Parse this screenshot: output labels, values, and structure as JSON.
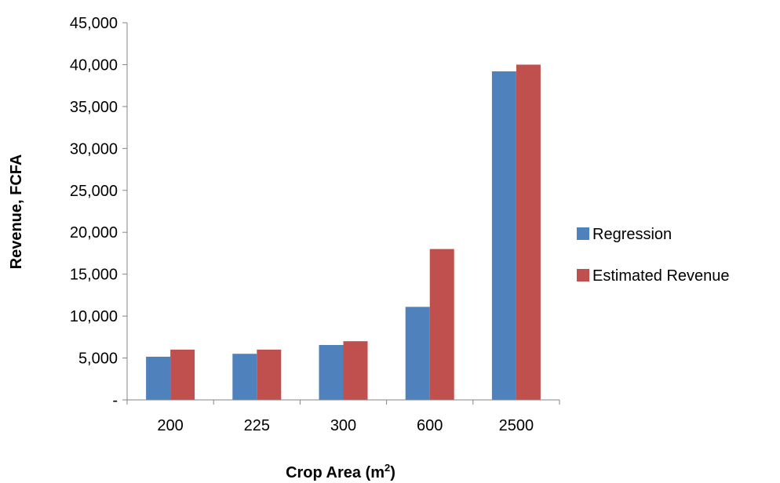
{
  "chart_data": {
    "type": "bar",
    "categories": [
      "200",
      "225",
      "300",
      "600",
      "2500"
    ],
    "series": [
      {
        "name": "Regression",
        "color": "#4F81BD",
        "values": [
          5150,
          5500,
          6550,
          11100,
          39200
        ]
      },
      {
        "name": "Estimated Revenue",
        "color": "#C0504D",
        "values": [
          6000,
          6000,
          7000,
          18000,
          40000
        ]
      }
    ],
    "title": "",
    "xlabel": "Crop Area (m",
    "xlabel_superscript": "2",
    "xlabel_suffix": ")",
    "ylabel": "Revenue, FCFA",
    "ylim": [
      0,
      45000
    ],
    "y_tick_labels": [
      "-",
      "5,000",
      "10,000",
      "15,000",
      "20,000",
      "25,000",
      "30,000",
      "35,000",
      "40,000",
      "45,000"
    ],
    "grid": false,
    "legend_position": "right"
  }
}
